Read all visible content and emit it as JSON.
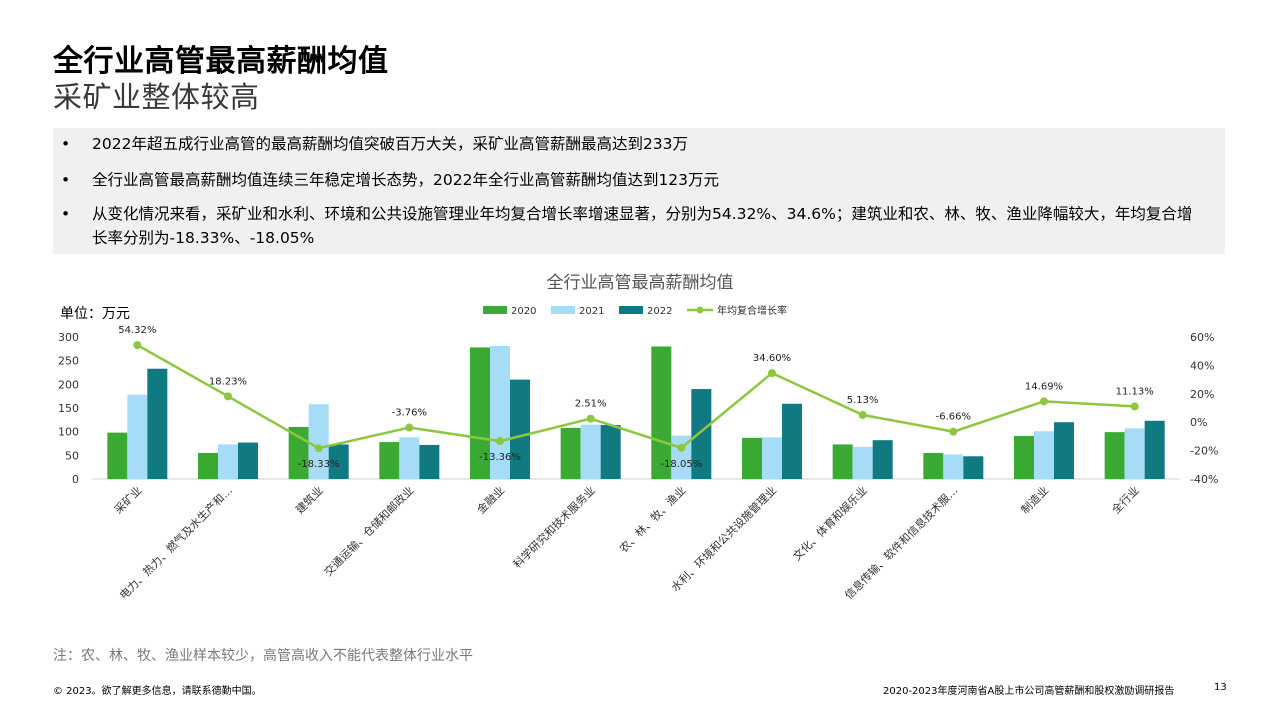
{
  "header": {
    "title": "全行业高管最高薪酬均值",
    "subtitle": "采矿业整体较高"
  },
  "bullets": [
    "2022年超五成行业高管的最高薪酬均值突破百万大关，采矿业高管薪酬最高达到233万",
    "全行业高管最高薪酬均值连续三年稳定增长态势，2022年全行业高管薪酬均值达到123万元",
    "从变化情况来看，采矿业和水利、环境和公共设施管理业年均复合增长率增速显著，分别为54.32%、34.6%；建筑业和农、林、牧、渔业降幅较大，年均复合增长率分别为-18.33%、-18.05%"
  ],
  "bullet_symbol": "•",
  "note": "注：农、林、牧、渔业样本较少，高管高收入不能代表整体行业水平",
  "footer": {
    "copyright": "© 2023。欲了解更多信息，请联系德勤中国。",
    "report": "2020-2023年度河南省A股上市公司高管薪酬和股权激励调研报告",
    "page": "13"
  },
  "colors": {
    "2020": "#3aaa35",
    "2021": "#a6dcf7",
    "2022": "#0f7a82",
    "growth": "#8dc63f",
    "axis": "#d0d0d0"
  },
  "chart_data": {
    "type": "bar",
    "title": "全行业高管最高薪酬均值",
    "unit_label": "单位：万元",
    "categories": [
      "采矿业",
      "电力、热力、燃气及水生产和…",
      "建筑业",
      "交通运输、仓储和邮政业",
      "金融业",
      "科学研究和技术服务业",
      "农、林、牧、渔业",
      "水利、环境和公共设施管理业",
      "文化、体育和娱乐业",
      "信息传输、软件和信息技术服…",
      "制造业",
      "全行业"
    ],
    "series": [
      {
        "name": "2020",
        "values": [
          98,
          55,
          110,
          78,
          278,
          108,
          280,
          87,
          73,
          55,
          91,
          99
        ]
      },
      {
        "name": "2021",
        "values": [
          178,
          73,
          158,
          88,
          281,
          115,
          92,
          88,
          68,
          52,
          101,
          107
        ]
      },
      {
        "name": "2022",
        "values": [
          233,
          77,
          73,
          72,
          210,
          114,
          190,
          159,
          82,
          48,
          120,
          123
        ]
      }
    ],
    "line_series": {
      "name": "年均复合增长率",
      "axis": "right",
      "values": [
        54.32,
        18.23,
        -18.33,
        -3.76,
        -13.36,
        2.51,
        -18.05,
        34.6,
        5.13,
        -6.66,
        14.69,
        11.13
      ],
      "labels": [
        "54.32%",
        "18.23%",
        "-18.33%",
        "-3.76%",
        "-13.36%",
        "2.51%",
        "-18.05%",
        "34.60%",
        "5.13%",
        "-6.66%",
        "14.69%",
        "11.13%"
      ]
    },
    "ylim_left": [
      0,
      300
    ],
    "yticks_left": [
      0,
      50,
      100,
      150,
      200,
      250,
      300
    ],
    "ytick_labels_left": [
      "0",
      "50",
      "100",
      "150",
      "200",
      "250",
      "300"
    ],
    "ylim_right": [
      -40,
      60
    ],
    "yticks_right": [
      -40,
      -20,
      0,
      20,
      40,
      60
    ],
    "ytick_labels_right": [
      "-40%",
      "-20%",
      "0%",
      "20%",
      "40%",
      "60%"
    ],
    "legend": [
      "2020",
      "2021",
      "2022",
      "年均复合增长率"
    ],
    "legend_position": "top-center",
    "grid": false
  }
}
